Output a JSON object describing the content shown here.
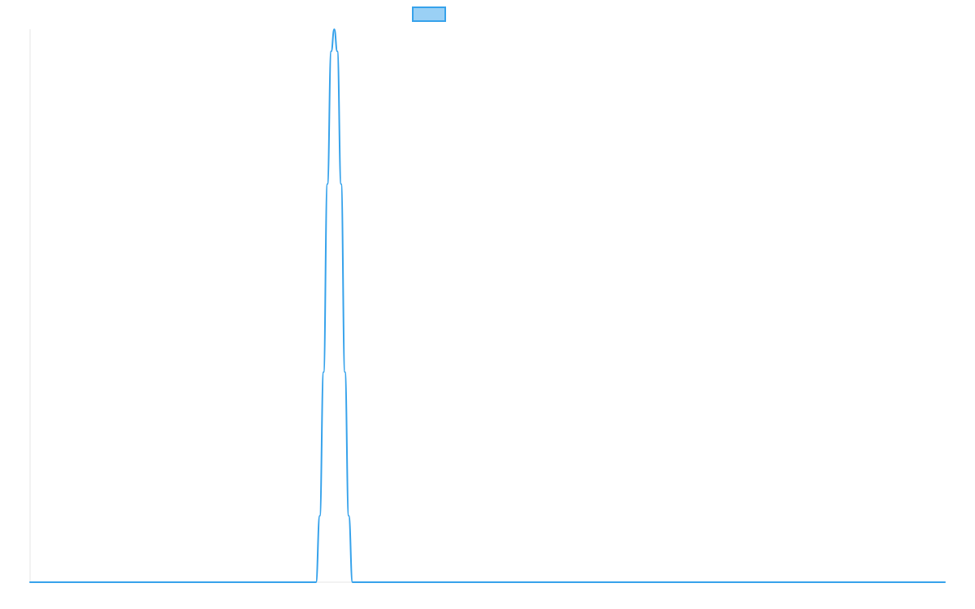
{
  "chart_data": {
    "type": "line",
    "title": "",
    "xlabel": "",
    "ylabel": "",
    "grid": false,
    "legend": {
      "placement": "top-center",
      "entries": [
        {
          "name": "",
          "color": "#36A2EB",
          "fill": "#9AD0F5"
        }
      ]
    },
    "xlim": [
      0,
      1200
    ],
    "ylim": [
      0,
      1
    ],
    "series": [
      {
        "name": "",
        "color": "#36A2EB",
        "points": [
          {
            "x": 0,
            "y": 0
          },
          {
            "x": 375,
            "y": 0
          },
          {
            "x": 380,
            "y": 0.12
          },
          {
            "x": 385,
            "y": 0.38
          },
          {
            "x": 390,
            "y": 0.72
          },
          {
            "x": 395,
            "y": 0.96
          },
          {
            "x": 399,
            "y": 1.0
          },
          {
            "x": 403,
            "y": 0.96
          },
          {
            "x": 408,
            "y": 0.72
          },
          {
            "x": 413,
            "y": 0.38
          },
          {
            "x": 418,
            "y": 0.12
          },
          {
            "x": 423,
            "y": 0
          },
          {
            "x": 1200,
            "y": 0
          }
        ]
      }
    ]
  }
}
